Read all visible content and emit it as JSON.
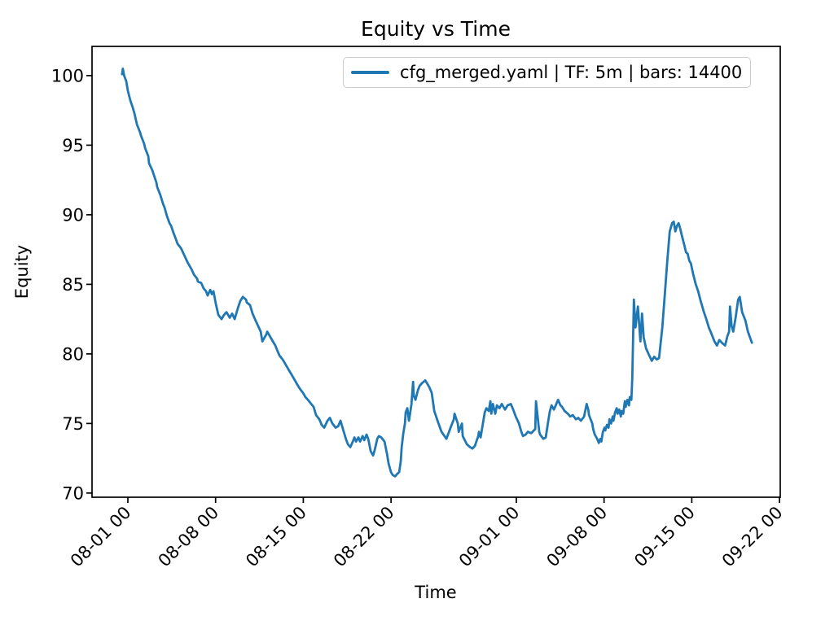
{
  "figure": {
    "title": "Equity vs Time",
    "xlabel": "Time",
    "ylabel": "Equity"
  },
  "legend": {
    "label": "cfg_merged.yaml | TF: 5m | bars: 14400",
    "line_color": "#1f77b4"
  },
  "axes": {
    "y_ticks": [
      70,
      75,
      80,
      85,
      90,
      95,
      100
    ],
    "x_ticks": [
      {
        "day": 0,
        "label": "08-01 00"
      },
      {
        "day": 7,
        "label": "08-08 00"
      },
      {
        "day": 14,
        "label": "08-15 00"
      },
      {
        "day": 21,
        "label": "08-22 00"
      },
      {
        "day": 31,
        "label": "09-01 00"
      },
      {
        "day": 38,
        "label": "09-08 00"
      },
      {
        "day": 45,
        "label": "09-15 00"
      },
      {
        "day": 52,
        "label": "09-22 00"
      }
    ]
  },
  "chart_data": {
    "type": "line",
    "title": "Equity vs Time",
    "xlabel": "Time",
    "ylabel": "Equity",
    "x_unit": "days after 08-01 00",
    "xlim": [
      -2.86,
      52.06
    ],
    "ylim": [
      69.7,
      102.1
    ],
    "grid": false,
    "legend_position": "upper right",
    "series": [
      {
        "name": "cfg_merged.yaml | TF: 5m | bars: 14400",
        "color": "#1f77b4",
        "points": [
          [
            -0.46,
            100.1
          ],
          [
            -0.4,
            100.5
          ],
          [
            -0.3,
            100.0
          ],
          [
            -0.13,
            99.6
          ],
          [
            0,
            98.9
          ],
          [
            0.2,
            98.2
          ],
          [
            0.39,
            97.7
          ],
          [
            0.52,
            97.3
          ],
          [
            0.72,
            96.5
          ],
          [
            0.98,
            95.9
          ],
          [
            1.04,
            95.7
          ],
          [
            1.3,
            95.1
          ],
          [
            1.37,
            94.8
          ],
          [
            1.63,
            94.2
          ],
          [
            1.69,
            93.7
          ],
          [
            1.95,
            93.2
          ],
          [
            2.02,
            93.0
          ],
          [
            2.28,
            92.3
          ],
          [
            2.34,
            92.0
          ],
          [
            2.6,
            91.4
          ],
          [
            2.8,
            90.8
          ],
          [
            2.93,
            90.5
          ],
          [
            3.12,
            89.9
          ],
          [
            3.32,
            89.4
          ],
          [
            3.45,
            89.2
          ],
          [
            3.64,
            88.7
          ],
          [
            3.77,
            88.4
          ],
          [
            3.97,
            87.9
          ],
          [
            4.23,
            87.6
          ],
          [
            4.29,
            87.5
          ],
          [
            4.55,
            87.0
          ],
          [
            4.75,
            86.6
          ],
          [
            4.94,
            86.3
          ],
          [
            5.07,
            86.1
          ],
          [
            5.27,
            85.7
          ],
          [
            5.53,
            85.4
          ],
          [
            5.59,
            85.2
          ],
          [
            5.85,
            85.1
          ],
          [
            6.05,
            84.7
          ],
          [
            6.24,
            84.5
          ],
          [
            6.37,
            84.2
          ],
          [
            6.57,
            84.6
          ],
          [
            6.7,
            84.3
          ],
          [
            6.83,
            84.5
          ],
          [
            7.02,
            83.6
          ],
          [
            7.22,
            82.8
          ],
          [
            7.48,
            82.5
          ],
          [
            7.67,
            82.8
          ],
          [
            7.87,
            83.0
          ],
          [
            8.13,
            82.6
          ],
          [
            8.32,
            82.9
          ],
          [
            8.52,
            82.5
          ],
          [
            8.78,
            83.3
          ],
          [
            8.97,
            83.8
          ],
          [
            9.17,
            84.1
          ],
          [
            9.43,
            83.9
          ],
          [
            9.49,
            83.7
          ],
          [
            9.75,
            83.5
          ],
          [
            9.95,
            82.9
          ],
          [
            10.14,
            82.5
          ],
          [
            10.4,
            82.0
          ],
          [
            10.6,
            81.6
          ],
          [
            10.73,
            80.9
          ],
          [
            11.05,
            81.4
          ],
          [
            11.12,
            81.6
          ],
          [
            11.38,
            81.2
          ],
          [
            11.57,
            80.9
          ],
          [
            11.77,
            80.6
          ],
          [
            11.9,
            80.3
          ],
          [
            12.09,
            79.9
          ],
          [
            12.35,
            79.6
          ],
          [
            12.42,
            79.5
          ],
          [
            12.68,
            79.1
          ],
          [
            12.87,
            78.8
          ],
          [
            13.07,
            78.5
          ],
          [
            13.33,
            78.1
          ],
          [
            13.52,
            77.8
          ],
          [
            13.72,
            77.5
          ],
          [
            13.98,
            77.2
          ],
          [
            14.17,
            76.9
          ],
          [
            14.37,
            76.7
          ],
          [
            14.63,
            76.4
          ],
          [
            14.82,
            76.2
          ],
          [
            15.02,
            75.6
          ],
          [
            15.28,
            75.3
          ],
          [
            15.47,
            74.9
          ],
          [
            15.67,
            74.7
          ],
          [
            15.93,
            75.2
          ],
          [
            16.12,
            75.4
          ],
          [
            16.32,
            75.0
          ],
          [
            16.58,
            74.7
          ],
          [
            16.78,
            74.8
          ],
          [
            16.97,
            75.2
          ],
          [
            17.23,
            74.4
          ],
          [
            17.43,
            73.8
          ],
          [
            17.56,
            73.5
          ],
          [
            17.75,
            73.3
          ],
          [
            17.95,
            73.7
          ],
          [
            18.08,
            74.0
          ],
          [
            18.21,
            73.7
          ],
          [
            18.4,
            74.0
          ],
          [
            18.53,
            73.7
          ],
          [
            18.73,
            74.1
          ],
          [
            18.86,
            73.8
          ],
          [
            19.05,
            74.2
          ],
          [
            19.18,
            73.9
          ],
          [
            19.38,
            73.0
          ],
          [
            19.57,
            72.7
          ],
          [
            19.7,
            73.1
          ],
          [
            19.9,
            73.9
          ],
          [
            20.03,
            74.1
          ],
          [
            20.22,
            74.0
          ],
          [
            20.48,
            73.7
          ],
          [
            20.68,
            72.8
          ],
          [
            20.81,
            72.1
          ],
          [
            21.0,
            71.5
          ],
          [
            21.13,
            71.3
          ],
          [
            21.33,
            71.2
          ],
          [
            21.52,
            71.4
          ],
          [
            21.65,
            71.5
          ],
          [
            21.78,
            72.3
          ],
          [
            21.85,
            73.3
          ],
          [
            21.98,
            74.3
          ],
          [
            22.11,
            75.0
          ],
          [
            22.17,
            75.8
          ],
          [
            22.3,
            76.1
          ],
          [
            22.43,
            75.2
          ],
          [
            22.5,
            75.6
          ],
          [
            22.63,
            76.4
          ],
          [
            22.76,
            78.0
          ],
          [
            22.82,
            77.0
          ],
          [
            22.95,
            76.7
          ],
          [
            23.15,
            77.4
          ],
          [
            23.28,
            77.7
          ],
          [
            23.47,
            77.9
          ],
          [
            23.73,
            78.1
          ],
          [
            23.8,
            78.0
          ],
          [
            24.06,
            77.6
          ],
          [
            24.25,
            77.2
          ],
          [
            24.45,
            75.9
          ],
          [
            24.71,
            75.2
          ],
          [
            25.03,
            74.4
          ],
          [
            25.42,
            73.9
          ],
          [
            25.75,
            74.7
          ],
          [
            26.01,
            75.3
          ],
          [
            26.07,
            75.7
          ],
          [
            26.33,
            75.0
          ],
          [
            26.4,
            74.4
          ],
          [
            26.66,
            75.0
          ],
          [
            26.72,
            74.1
          ],
          [
            27.05,
            73.5
          ],
          [
            27.31,
            73.3
          ],
          [
            27.5,
            73.2
          ],
          [
            27.7,
            73.4
          ],
          [
            27.96,
            74.1
          ],
          [
            28.02,
            74.4
          ],
          [
            28.15,
            74.0
          ],
          [
            28.48,
            75.8
          ],
          [
            28.61,
            76.1
          ],
          [
            28.8,
            75.9
          ],
          [
            28.93,
            76.6
          ],
          [
            29.0,
            75.7
          ],
          [
            29.13,
            76.4
          ],
          [
            29.32,
            75.7
          ],
          [
            29.45,
            76.3
          ],
          [
            29.65,
            76.1
          ],
          [
            29.84,
            76.4
          ],
          [
            30.1,
            76.0
          ],
          [
            30.3,
            76.3
          ],
          [
            30.56,
            76.4
          ],
          [
            30.75,
            76.0
          ],
          [
            30.95,
            75.5
          ],
          [
            31.21,
            75.0
          ],
          [
            31.4,
            74.4
          ],
          [
            31.53,
            74.1
          ],
          [
            31.73,
            74.2
          ],
          [
            31.92,
            74.4
          ],
          [
            32.18,
            74.3
          ],
          [
            32.51,
            74.6
          ],
          [
            32.57,
            76.6
          ],
          [
            32.83,
            74.4
          ],
          [
            32.9,
            74.2
          ],
          [
            33.16,
            73.9
          ],
          [
            33.35,
            74.0
          ],
          [
            33.55,
            75.2
          ],
          [
            33.68,
            75.9
          ],
          [
            33.81,
            76.3
          ],
          [
            34.0,
            76.0
          ],
          [
            34.33,
            76.7
          ],
          [
            34.52,
            76.3
          ],
          [
            34.65,
            76.2
          ],
          [
            34.85,
            75.9
          ],
          [
            35.11,
            75.7
          ],
          [
            35.3,
            75.5
          ],
          [
            35.5,
            75.6
          ],
          [
            35.76,
            75.3
          ],
          [
            35.95,
            75.4
          ],
          [
            36.15,
            75.2
          ],
          [
            36.41,
            75.5
          ],
          [
            36.61,
            76.4
          ],
          [
            36.74,
            76.0
          ],
          [
            36.8,
            75.6
          ],
          [
            37.06,
            75.0
          ],
          [
            37.13,
            74.6
          ],
          [
            37.26,
            74.2
          ],
          [
            37.45,
            73.9
          ],
          [
            37.58,
            73.6
          ],
          [
            37.71,
            73.9
          ],
          [
            37.78,
            73.7
          ],
          [
            37.91,
            74.4
          ],
          [
            38.04,
            74.7
          ],
          [
            38.1,
            74.5
          ],
          [
            38.23,
            74.9
          ],
          [
            38.36,
            74.7
          ],
          [
            38.43,
            75.3
          ],
          [
            38.56,
            75.0
          ],
          [
            38.69,
            75.5
          ],
          [
            38.75,
            75.2
          ],
          [
            38.88,
            75.8
          ],
          [
            39.01,
            76.1
          ],
          [
            39.08,
            75.7
          ],
          [
            39.21,
            76.0
          ],
          [
            39.34,
            75.5
          ],
          [
            39.4,
            75.9
          ],
          [
            39.53,
            75.7
          ],
          [
            39.66,
            76.6
          ],
          [
            39.73,
            76.2
          ],
          [
            39.86,
            76.7
          ],
          [
            39.99,
            76.3
          ],
          [
            40.05,
            76.9
          ],
          [
            40.18,
            76.7
          ],
          [
            40.25,
            78.2
          ],
          [
            40.38,
            83.9
          ],
          [
            40.51,
            81.9
          ],
          [
            40.7,
            83.4
          ],
          [
            40.9,
            80.9
          ],
          [
            41.03,
            82.9
          ],
          [
            41.16,
            81.2
          ],
          [
            41.35,
            80.4
          ],
          [
            41.55,
            80.0
          ],
          [
            41.81,
            79.5
          ],
          [
            42.0,
            79.8
          ],
          [
            42.2,
            79.6
          ],
          [
            42.39,
            79.7
          ],
          [
            42.65,
            81.9
          ],
          [
            42.85,
            84.3
          ],
          [
            43.04,
            86.6
          ],
          [
            43.24,
            88.8
          ],
          [
            43.43,
            89.4
          ],
          [
            43.56,
            89.5
          ],
          [
            43.69,
            88.8
          ],
          [
            43.82,
            89.2
          ],
          [
            43.95,
            89.4
          ],
          [
            44.08,
            89.0
          ],
          [
            44.21,
            88.5
          ],
          [
            44.41,
            87.8
          ],
          [
            44.54,
            87.3
          ],
          [
            44.67,
            87.2
          ],
          [
            44.8,
            86.7
          ],
          [
            44.93,
            86.5
          ],
          [
            45.12,
            85.7
          ],
          [
            45.32,
            85.0
          ],
          [
            45.51,
            84.5
          ],
          [
            45.71,
            83.8
          ],
          [
            45.97,
            83.0
          ],
          [
            46.16,
            82.5
          ],
          [
            46.36,
            81.9
          ],
          [
            46.55,
            81.5
          ],
          [
            46.81,
            80.9
          ],
          [
            47.01,
            80.6
          ],
          [
            47.2,
            81.0
          ],
          [
            47.4,
            80.8
          ],
          [
            47.66,
            80.6
          ],
          [
            47.85,
            81.3
          ],
          [
            47.98,
            81.6
          ],
          [
            48.05,
            83.4
          ],
          [
            48.18,
            82.0
          ],
          [
            48.31,
            81.6
          ],
          [
            48.5,
            82.6
          ],
          [
            48.7,
            83.9
          ],
          [
            48.83,
            84.1
          ],
          [
            49.02,
            83.0
          ],
          [
            49.28,
            82.4
          ],
          [
            49.48,
            81.6
          ],
          [
            49.8,
            80.8
          ]
        ]
      }
    ]
  }
}
